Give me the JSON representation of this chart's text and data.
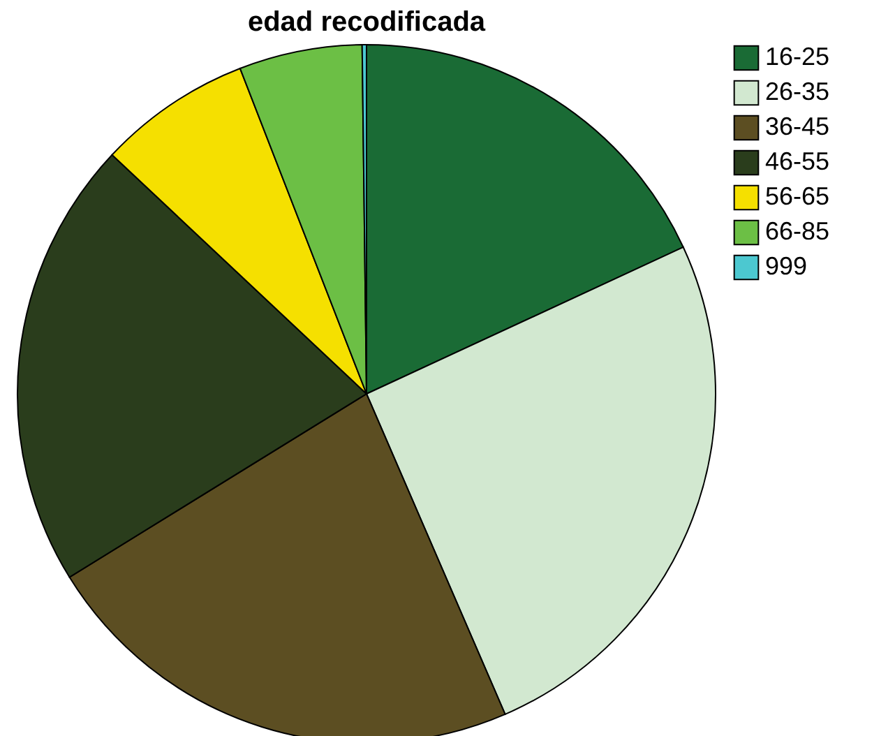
{
  "chart_data": {
    "type": "pie",
    "title": "edad recodificada",
    "categories": [
      "16-25",
      "26-35",
      "36-45",
      "46-55",
      "56-65",
      "66-85",
      "999"
    ],
    "values": [
      18.1,
      25.4,
      22.7,
      20.8,
      7.1,
      5.7,
      0.2
    ],
    "colors": [
      "#1a6b35",
      "#d2e8d0",
      "#5c4e22",
      "#2a3d1c",
      "#f5e000",
      "#6cbf45",
      "#4cc8d0"
    ],
    "legend": "right"
  }
}
